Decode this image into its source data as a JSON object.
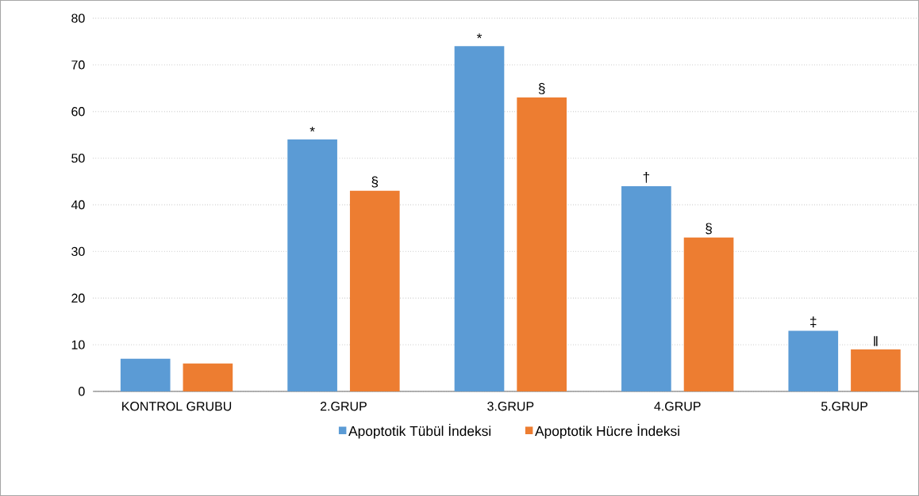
{
  "chart_data": {
    "type": "bar",
    "categories": [
      "KONTROL GRUBU",
      "2.GRUP",
      "3.GRUP",
      "4.GRUP",
      "5.GRUP"
    ],
    "series": [
      {
        "name": "Apoptotik Tübül İndeksi",
        "color": "#5b9bd5",
        "values": [
          7,
          54,
          74,
          44,
          13
        ],
        "value_labels": [
          null,
          "*",
          "*",
          "†",
          "‡"
        ]
      },
      {
        "name": "Apoptotik Hücre İndeksi",
        "color": "#ed7d31",
        "values": [
          6,
          43,
          63,
          33,
          9
        ],
        "value_labels": [
          null,
          "§",
          "§",
          "§",
          "‖"
        ]
      }
    ],
    "ylim": [
      0,
      80
    ],
    "yticks": [
      0,
      10,
      20,
      30,
      40,
      50,
      60,
      70,
      80
    ],
    "grid": "y",
    "legend": "bottom"
  }
}
